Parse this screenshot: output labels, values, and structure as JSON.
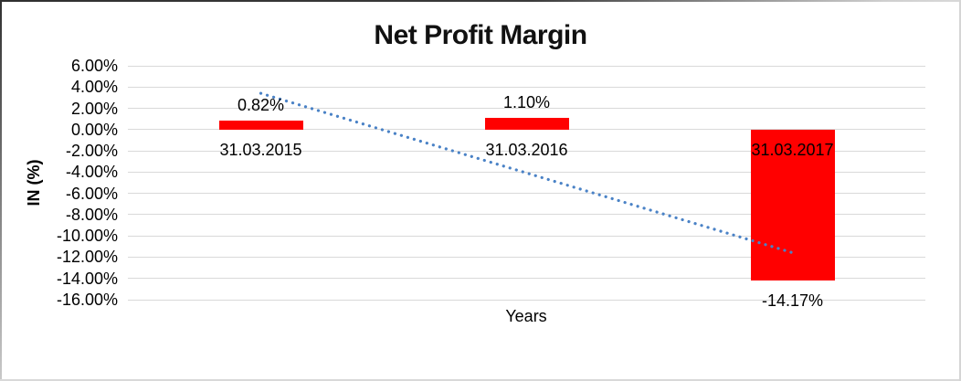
{
  "chart_data": {
    "type": "bar",
    "title": "Net Profit Margin",
    "xlabel": "Years",
    "ylabel": "IN (%)",
    "categories": [
      "31.03.2015",
      "31.03.2016",
      "31.03.2017"
    ],
    "values": [
      0.82,
      1.1,
      -14.17
    ],
    "data_labels": [
      "0.82%",
      "1.10%",
      "-14.17%"
    ],
    "yticks": [
      "6.00%",
      "4.00%",
      "2.00%",
      "0.00%",
      "-2.00%",
      "-4.00%",
      "-6.00%",
      "-8.00%",
      "-10.00%",
      "-12.00%",
      "-14.00%",
      "-16.00%"
    ],
    "ylim": [
      -16,
      6
    ],
    "ytick_step": 2,
    "grid": true,
    "legend": false,
    "bar_color": "#FF0000",
    "gridline_color": "#D9D9D9",
    "trendline": {
      "type": "linear",
      "style": "dotted",
      "color": "#4A82C6",
      "start_value": 3.41,
      "end_value": -11.58
    }
  }
}
